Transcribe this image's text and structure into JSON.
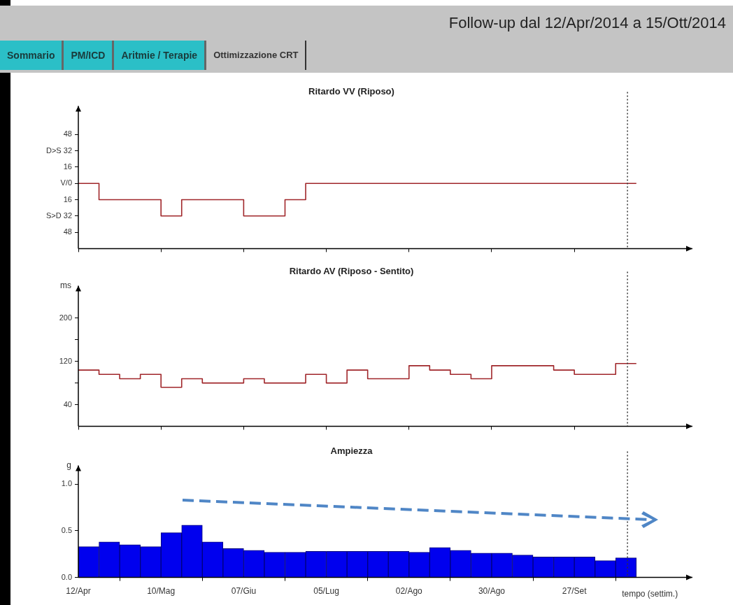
{
  "chart_data": [
    {
      "type": "other",
      "title": "Follow-up dal 12/Apr/2014  a 15/Ott/2014",
      "annotations": [
        "Sommario",
        "PM/ICD",
        "Aritmie / Terapie",
        "Ottimizzazione CRT"
      ]
    },
    {
      "type": "step",
      "title": "Ritardo VV (Riposo)",
      "x": [
        "2014-04-12",
        "2014-04-19",
        "2014-04-26",
        "2014-05-03",
        "2014-05-10",
        "2014-05-17",
        "2014-05-24",
        "2014-05-31",
        "2014-06-07",
        "2014-06-14",
        "2014-06-21",
        "2014-06-28",
        "2014-07-05",
        "2014-07-12",
        "2014-07-19",
        "2014-07-26",
        "2014-08-02",
        "2014-08-09",
        "2014-08-16",
        "2014-08-23",
        "2014-08-30",
        "2014-09-06",
        "2014-09-13",
        "2014-09-20",
        "2014-09-27",
        "2014-10-04",
        "2014-10-11",
        "2014-10-18"
      ],
      "series": [
        {
          "color": "#a0262a",
          "values": [
            0,
            -16,
            -16,
            -16,
            -32,
            -16,
            -16,
            -16,
            -32,
            -32,
            -16,
            0,
            0,
            0,
            0,
            0,
            0,
            0,
            0,
            0,
            0,
            0,
            0,
            0,
            0,
            0,
            0,
            0
          ]
        }
      ],
      "xlim": [
        "2014-04-12",
        "2014-11-06"
      ],
      "xticks": [
        {
          "value": "2014-04-12",
          "label": null
        },
        {
          "value": "2014-05-10",
          "label": null
        },
        {
          "value": "2014-06-07",
          "label": null
        },
        {
          "value": "2014-07-05",
          "label": null
        },
        {
          "value": "2014-08-02",
          "label": null
        },
        {
          "value": "2014-08-30",
          "label": null
        },
        {
          "value": "2014-09-27",
          "label": null
        }
      ],
      "ylim": [
        -64,
        76
      ],
      "yticks": [
        {
          "value": -48,
          "label": "48"
        },
        {
          "value": -32,
          "label": "S>D 32"
        },
        {
          "value": -16,
          "label": "16"
        },
        {
          "value": 0,
          "label": "V/0"
        },
        {
          "value": 16,
          "label": "16"
        },
        {
          "value": 32,
          "label": "D>S 32"
        },
        {
          "value": 48,
          "label": "48"
        }
      ],
      "ref_lines": [
        {
          "axis": "x",
          "value": "2014-10-15",
          "line_style": "dotted",
          "color": "#333333"
        }
      ],
      "tick_labels": "y",
      "grid": false,
      "legend": false,
      "line_style": "solid"
    },
    {
      "type": "step",
      "title": "Ritardo AV (Riposo - Sentito)",
      "ylabel": "ms",
      "x": [
        "2014-04-12",
        "2014-04-19",
        "2014-04-26",
        "2014-05-03",
        "2014-05-10",
        "2014-05-17",
        "2014-05-24",
        "2014-05-31",
        "2014-06-07",
        "2014-06-14",
        "2014-06-21",
        "2014-06-28",
        "2014-07-05",
        "2014-07-12",
        "2014-07-19",
        "2014-07-26",
        "2014-08-02",
        "2014-08-09",
        "2014-08-16",
        "2014-08-23",
        "2014-08-30",
        "2014-09-06",
        "2014-09-13",
        "2014-09-20",
        "2014-09-27",
        "2014-10-04",
        "2014-10-11",
        "2014-10-18"
      ],
      "series": [
        {
          "color": "#a0262a",
          "values": [
            104,
            96,
            88,
            96,
            72,
            88,
            80,
            80,
            88,
            80,
            80,
            96,
            80,
            104,
            88,
            88,
            112,
            104,
            96,
            88,
            112,
            112,
            112,
            104,
            96,
            96,
            116,
            116
          ]
        }
      ],
      "xlim": [
        "2014-04-12",
        "2014-11-06"
      ],
      "xticks": [
        {
          "value": "2014-04-12",
          "label": null
        },
        {
          "value": "2014-05-10",
          "label": null
        },
        {
          "value": "2014-06-07",
          "label": null
        },
        {
          "value": "2014-07-05",
          "label": null
        },
        {
          "value": "2014-08-02",
          "label": null
        },
        {
          "value": "2014-08-30",
          "label": null
        },
        {
          "value": "2014-09-27",
          "label": null
        }
      ],
      "ylim": [
        0,
        260
      ],
      "yticks": [
        40,
        {
          "value": 80,
          "label": null
        },
        120,
        {
          "value": 160,
          "label": null
        },
        200
      ],
      "ref_lines": [
        {
          "axis": "x",
          "value": "2014-10-15",
          "line_style": "dotted",
          "color": "#333333"
        }
      ],
      "tick_labels": "y",
      "grid": false,
      "legend": false,
      "line_style": "solid"
    },
    {
      "type": "histogram",
      "title": "Ampiezza",
      "ylabel": "g",
      "xlabel": "tempo (settim.)",
      "bins": [
        "2014-04-12",
        "2014-04-19",
        "2014-04-26",
        "2014-05-03",
        "2014-05-10",
        "2014-05-17",
        "2014-05-24",
        "2014-05-31",
        "2014-06-07",
        "2014-06-14",
        "2014-06-21",
        "2014-06-28",
        "2014-07-05",
        "2014-07-12",
        "2014-07-19",
        "2014-07-26",
        "2014-08-02",
        "2014-08-09",
        "2014-08-16",
        "2014-08-23",
        "2014-08-30",
        "2014-09-06",
        "2014-09-13",
        "2014-09-20",
        "2014-09-27",
        "2014-10-04",
        "2014-10-11",
        "2014-10-18"
      ],
      "values": [
        0.33,
        0.38,
        0.35,
        0.33,
        0.48,
        0.56,
        0.38,
        0.31,
        0.29,
        0.27,
        0.27,
        0.28,
        0.28,
        0.28,
        0.28,
        0.28,
        0.27,
        0.32,
        0.29,
        0.26,
        0.26,
        0.24,
        0.22,
        0.22,
        0.22,
        0.18,
        0.21
      ],
      "color": "#0000ee",
      "xlim": [
        "2014-04-12",
        "2014-11-06"
      ],
      "xticks": [
        {
          "value": "2014-04-12",
          "label": "12/Apr"
        },
        {
          "value": "2014-05-10",
          "label": "10/Mag"
        },
        {
          "value": "2014-06-07",
          "label": "07/Giu"
        },
        {
          "value": "2014-07-05",
          "label": "05/Lug"
        },
        {
          "value": "2014-08-02",
          "label": "02/Ago"
        },
        {
          "value": "2014-08-30",
          "label": "30/Ago"
        },
        {
          "value": "2014-09-27",
          "label": "27/Set"
        }
      ],
      "ylim": [
        0,
        1.2
      ],
      "yticks": [
        {
          "value": 0,
          "label": "0.0"
        },
        {
          "value": 0.5,
          "label": "0.5"
        },
        {
          "value": 1,
          "label": "1.0"
        }
      ],
      "ref_lines": [
        {
          "axis": "x",
          "value": "2014-10-15",
          "line_style": "dotted",
          "color": "#333333"
        }
      ],
      "grid": false,
      "legend": false
    }
  ]
}
